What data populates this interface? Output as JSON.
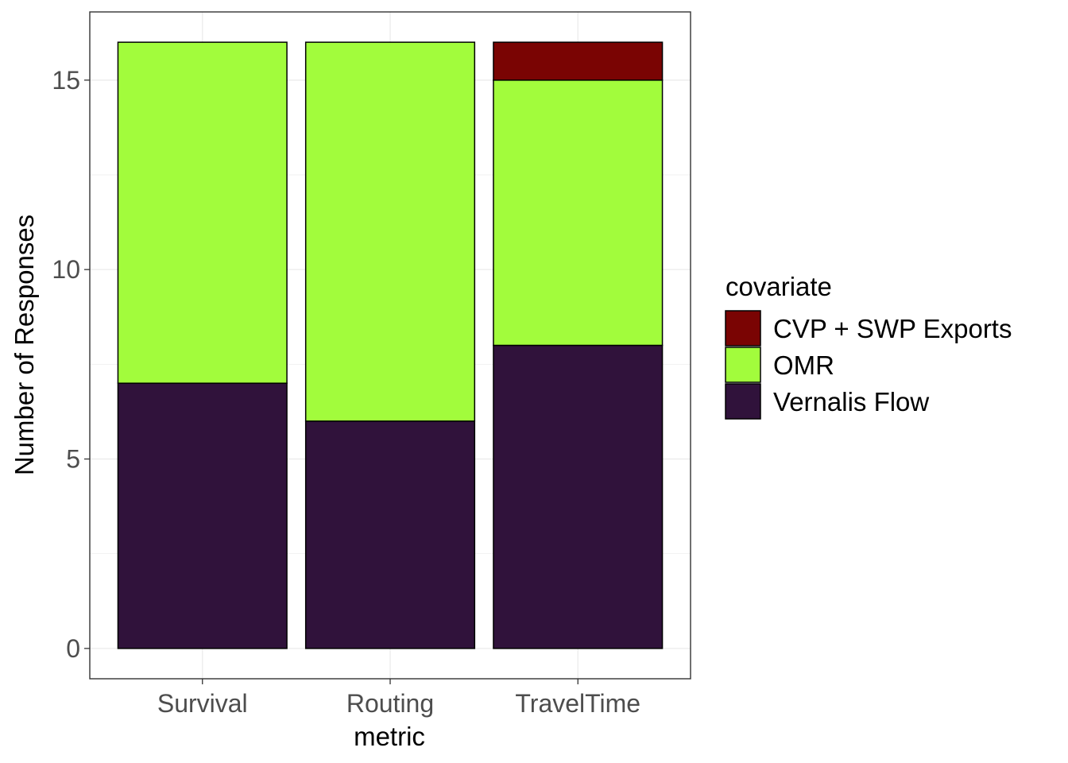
{
  "chart_data": {
    "type": "bar",
    "stacked": true,
    "categories": [
      "Survival",
      "Routing",
      "TravelTime"
    ],
    "series": [
      {
        "name": "CVP + SWP Exports",
        "values": [
          0,
          0,
          1
        ],
        "color": "#7a0403"
      },
      {
        "name": "OMR",
        "values": [
          9,
          10,
          7
        ],
        "color": "#a2fc3c"
      },
      {
        "name": "Vernalis Flow",
        "values": [
          7,
          6,
          8
        ],
        "color": "#30123b"
      }
    ],
    "stack_order_bottom_to_top": [
      "Vernalis Flow",
      "OMR",
      "CVP + SWP Exports"
    ],
    "xlabel": "metric",
    "ylabel": "Number of Responses",
    "ylim": [
      -0.8,
      16.8
    ],
    "yticks": [
      0,
      5,
      10,
      15
    ],
    "grid": true,
    "legend": {
      "title": "covariate",
      "position": "right"
    },
    "bar_outline_color": "#000000",
    "grid_color": "#ebebeb",
    "panel_border_color": "#333333"
  }
}
